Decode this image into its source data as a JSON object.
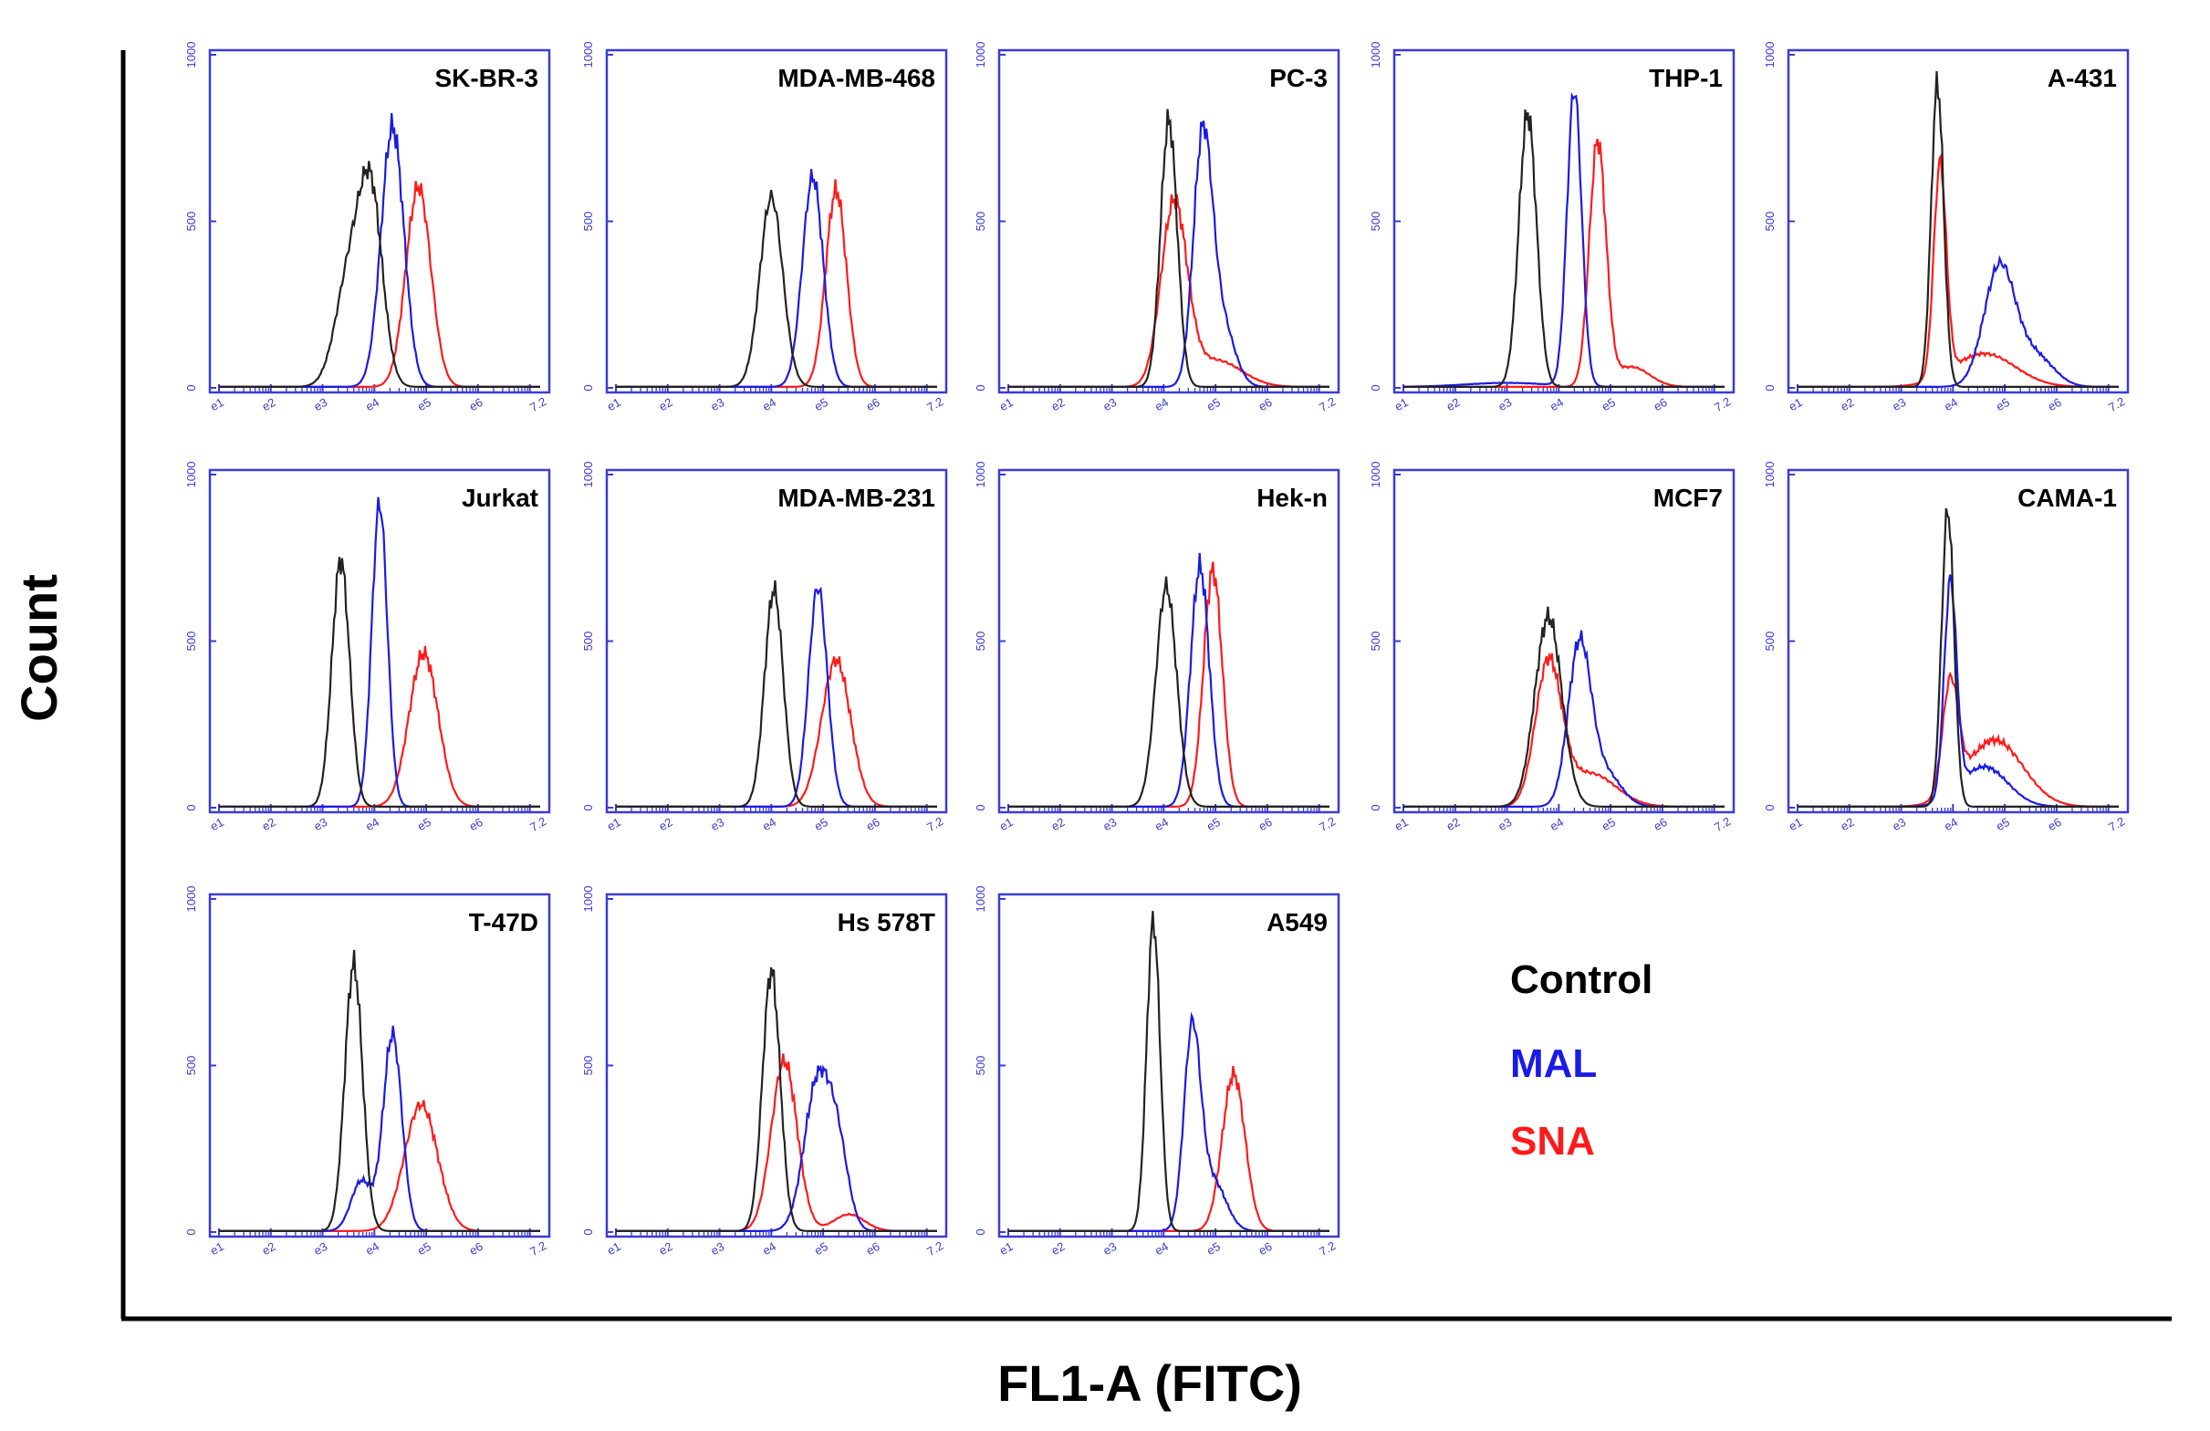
{
  "figure": {
    "ylabel": "Count",
    "xlabel": "FL1-A (FITC)"
  },
  "legend": {
    "entries": [
      {
        "label": "Control",
        "color": "#000000"
      },
      {
        "label": "MAL",
        "color": "#1a1ae6"
      },
      {
        "label": "SNA",
        "color": "#ff1a1a"
      }
    ]
  },
  "colors": {
    "frame": "#3b3bd6",
    "control": "#222222",
    "mal": "#1a1ae6",
    "sna": "#ff1a1a"
  },
  "axis": {
    "x_log_range": [
      1,
      7.2
    ],
    "x_ticks": [
      "e1",
      "e2",
      "e3",
      "e4",
      "e5",
      "e6",
      "7.2"
    ],
    "y_range": [
      0,
      1000
    ],
    "y_ticks": [
      "0",
      "500",
      "1000"
    ]
  },
  "chart_data": [
    {
      "type": "line",
      "title": "SK-BR-3",
      "xscale": "log10",
      "x_log_range": [
        1,
        7.2
      ],
      "ylim": [
        0,
        1000
      ],
      "series": [
        {
          "name": "Control",
          "peaks": [
            [
              3.55,
              360,
              0.28
            ],
            [
              3.95,
              500,
              0.22
            ]
          ]
        },
        {
          "name": "MAL",
          "peaks": [
            [
              4.35,
              780,
              0.22
            ]
          ]
        },
        {
          "name": "SNA",
          "peaks": [
            [
              4.85,
              600,
              0.24
            ]
          ]
        }
      ]
    },
    {
      "type": "line",
      "title": "MDA-MB-468",
      "xscale": "log10",
      "x_log_range": [
        1,
        7.2
      ],
      "ylim": [
        0,
        1000
      ],
      "series": [
        {
          "name": "Control",
          "peaks": [
            [
              4.0,
              570,
              0.22
            ]
          ]
        },
        {
          "name": "MAL",
          "peaks": [
            [
              4.8,
              630,
              0.2
            ]
          ]
        },
        {
          "name": "SNA",
          "peaks": [
            [
              5.25,
              590,
              0.2
            ]
          ]
        }
      ]
    },
    {
      "type": "line",
      "title": "PC-3",
      "xscale": "log10",
      "x_log_range": [
        1,
        7.2
      ],
      "ylim": [
        0,
        1000
      ],
      "series": [
        {
          "name": "Control",
          "peaks": [
            [
              4.1,
              800,
              0.16
            ]
          ]
        },
        {
          "name": "MAL",
          "peaks": [
            [
              4.75,
              710,
              0.18
            ],
            [
              5.1,
              200,
              0.25
            ]
          ]
        },
        {
          "name": "SNA",
          "peaks": [
            [
              4.2,
              540,
              0.25
            ],
            [
              5.0,
              80,
              0.5
            ]
          ]
        }
      ]
    },
    {
      "type": "line",
      "title": "THP-1",
      "xscale": "log10",
      "x_log_range": [
        1,
        7.2
      ],
      "ylim": [
        0,
        1000
      ],
      "series": [
        {
          "name": "Control",
          "peaks": [
            [
              3.4,
              820,
              0.17
            ]
          ]
        },
        {
          "name": "MAL",
          "peaks": [
            [
              4.3,
              890,
              0.14
            ],
            [
              3.0,
              12,
              0.8
            ]
          ]
        },
        {
          "name": "SNA",
          "peaks": [
            [
              4.75,
              730,
              0.16
            ],
            [
              5.4,
              60,
              0.35
            ]
          ]
        }
      ]
    },
    {
      "type": "line",
      "title": "A-431",
      "xscale": "log10",
      "x_log_range": [
        1,
        7.2
      ],
      "ylim": [
        0,
        1000
      ],
      "series": [
        {
          "name": "Control",
          "peaks": [
            [
              3.7,
              910,
              0.12
            ]
          ]
        },
        {
          "name": "MAL",
          "peaks": [
            [
              4.9,
              360,
              0.3
            ],
            [
              5.6,
              90,
              0.35
            ]
          ]
        },
        {
          "name": "SNA",
          "peaks": [
            [
              3.75,
              640,
              0.12
            ],
            [
              4.6,
              100,
              0.6
            ]
          ]
        }
      ]
    },
    {
      "type": "line",
      "title": "Jurkat",
      "xscale": "log10",
      "x_log_range": [
        1,
        7.2
      ],
      "ylim": [
        0,
        1000
      ],
      "series": [
        {
          "name": "Control",
          "peaks": [
            [
              3.35,
              740,
              0.17
            ]
          ]
        },
        {
          "name": "MAL",
          "peaks": [
            [
              4.1,
              910,
              0.15
            ]
          ]
        },
        {
          "name": "SNA",
          "peaks": [
            [
              4.95,
              460,
              0.28
            ]
          ]
        }
      ]
    },
    {
      "type": "line",
      "title": "MDA-MB-231",
      "xscale": "log10",
      "x_log_range": [
        1,
        7.2
      ],
      "ylim": [
        0,
        1000
      ],
      "series": [
        {
          "name": "Control",
          "peaks": [
            [
              4.05,
              650,
              0.18
            ]
          ]
        },
        {
          "name": "MAL",
          "peaks": [
            [
              4.9,
              660,
              0.18
            ]
          ]
        },
        {
          "name": "SNA",
          "peaks": [
            [
              5.25,
              440,
              0.28
            ]
          ]
        }
      ]
    },
    {
      "type": "line",
      "title": "Hek-n",
      "xscale": "log10",
      "x_log_range": [
        1,
        7.2
      ],
      "ylim": [
        0,
        1000
      ],
      "series": [
        {
          "name": "Control",
          "peaks": [
            [
              4.05,
              660,
              0.2
            ]
          ]
        },
        {
          "name": "MAL",
          "peaks": [
            [
              4.7,
              720,
              0.18
            ]
          ]
        },
        {
          "name": "SNA",
          "peaks": [
            [
              4.95,
              710,
              0.18
            ]
          ]
        }
      ]
    },
    {
      "type": "line",
      "title": "MCF7",
      "xscale": "log10",
      "x_log_range": [
        1,
        7.2
      ],
      "ylim": [
        0,
        1000
      ],
      "series": [
        {
          "name": "Control",
          "peaks": [
            [
              3.8,
              570,
              0.26
            ]
          ]
        },
        {
          "name": "MAL",
          "peaks": [
            [
              4.4,
              480,
              0.22
            ],
            [
              4.9,
              100,
              0.3
            ]
          ]
        },
        {
          "name": "SNA",
          "peaks": [
            [
              3.8,
              420,
              0.25
            ],
            [
              4.6,
              100,
              0.5
            ]
          ]
        }
      ]
    },
    {
      "type": "line",
      "title": "CAMA-1",
      "xscale": "log10",
      "x_log_range": [
        1,
        7.2
      ],
      "ylim": [
        0,
        1000
      ],
      "series": [
        {
          "name": "Control",
          "peaks": [
            [
              3.9,
              890,
              0.12
            ]
          ]
        },
        {
          "name": "MAL",
          "peaks": [
            [
              3.95,
              640,
              0.12
            ],
            [
              4.6,
              120,
              0.45
            ]
          ]
        },
        {
          "name": "SNA",
          "peaks": [
            [
              3.95,
              330,
              0.15
            ],
            [
              4.8,
              200,
              0.55
            ]
          ]
        }
      ]
    },
    {
      "type": "line",
      "title": "T-47D",
      "xscale": "log10",
      "x_log_range": [
        1,
        7.2
      ],
      "ylim": [
        0,
        1000
      ],
      "series": [
        {
          "name": "Control",
          "peaks": [
            [
              3.6,
              800,
              0.17
            ]
          ]
        },
        {
          "name": "MAL",
          "peaks": [
            [
              4.35,
              590,
              0.18
            ],
            [
              3.75,
              150,
              0.2
            ]
          ]
        },
        {
          "name": "SNA",
          "peaks": [
            [
              4.9,
              380,
              0.32
            ]
          ]
        }
      ]
    },
    {
      "type": "line",
      "title": "Hs 578T",
      "xscale": "log10",
      "x_log_range": [
        1,
        7.2
      ],
      "ylim": [
        0,
        1000
      ],
      "series": [
        {
          "name": "Control",
          "peaks": [
            [
              4.0,
              780,
              0.17
            ]
          ]
        },
        {
          "name": "MAL",
          "peaks": [
            [
              4.9,
              450,
              0.26
            ],
            [
              5.3,
              200,
              0.2
            ]
          ]
        },
        {
          "name": "SNA",
          "peaks": [
            [
              4.25,
              510,
              0.25
            ],
            [
              5.5,
              50,
              0.3
            ]
          ]
        }
      ]
    },
    {
      "type": "line",
      "title": "A549",
      "xscale": "log10",
      "x_log_range": [
        1,
        7.2
      ],
      "ylim": [
        0,
        1000
      ],
      "series": [
        {
          "name": "Control",
          "peaks": [
            [
              3.8,
              930,
              0.13
            ]
          ]
        },
        {
          "name": "MAL",
          "peaks": [
            [
              4.55,
              590,
              0.16
            ],
            [
              4.95,
              150,
              0.25
            ]
          ]
        },
        {
          "name": "SNA",
          "peaks": [
            [
              5.35,
              470,
              0.22
            ]
          ]
        }
      ]
    }
  ]
}
